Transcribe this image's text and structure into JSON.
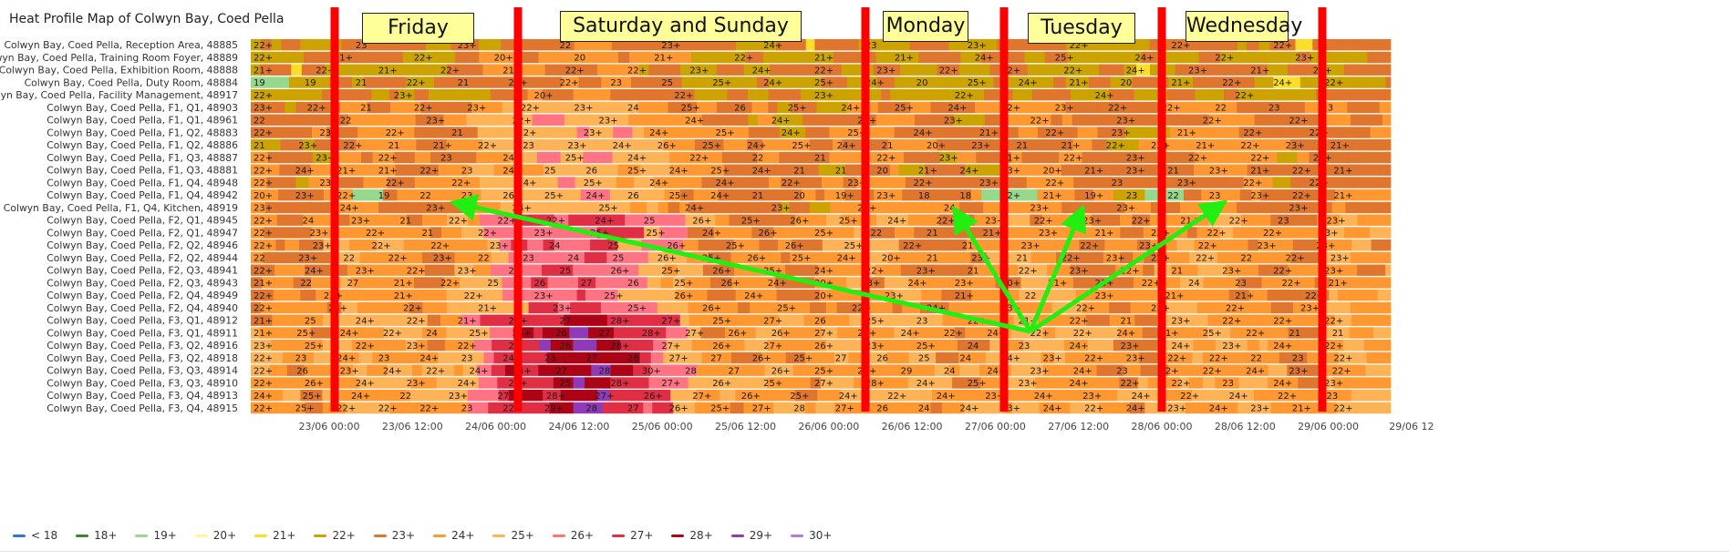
{
  "panel": {
    "title": "Heat Profile Map of Colwyn Bay, Coed Pella"
  },
  "chart_data": {
    "type": "heatmap",
    "title": "Heat Profile Map of Colwyn Bay, Coed Pella",
    "rows": [
      "Colwyn Bay, Coed Pella, Reception Area, 48885",
      "Colwyn Bay, Coed Pella, Training Room Foyer, 48889",
      "Colwyn Bay, Coed Pella, Exhibition Room, 48888",
      "Colwyn Bay, Coed Pella, Duty Room, 48884",
      "Colwyn Bay, Coed Pella, Facility Management, 48917",
      "Colwyn Bay, Coed Pella, F1, Q1, 48903",
      "Colwyn Bay, Coed Pella, F1, Q1, 48961",
      "Colwyn Bay, Coed Pella, F1, Q2, 48883",
      "Colwyn Bay, Coed Pella, F1, Q2, 48886",
      "Colwyn Bay, Coed Pella, F1, Q3, 48887",
      "Colwyn Bay, Coed Pella, F1, Q3, 48881",
      "Colwyn Bay, Coed Pella, F1, Q4, 48948",
      "Colwyn Bay, Coed Pella, F1, Q4, 48942",
      "Colwyn Bay, Coed Pella, F1, Q4, Kitchen, 48919",
      "Colwyn Bay, Coed Pella, F2, Q1, 48945",
      "Colwyn Bay, Coed Pella, F2, Q1, 48947",
      "Colwyn Bay, Coed Pella, F2, Q2, 48946",
      "Colwyn Bay, Coed Pella, F2, Q2, 48944",
      "Colwyn Bay, Coed Pella, F2, Q3, 48941",
      "Colwyn Bay, Coed Pella, F2, Q3, 48943",
      "Colwyn Bay, Coed Pella, F2, Q4, 48949",
      "Colwyn Bay, Coed Pella, F2, Q4, 48940",
      "Colwyn Bay, Coed Pella, F3, Q1, 48912",
      "Colwyn Bay, Coed Pella, F3, Q1, 48911",
      "Colwyn Bay, Coed Pella, F3, Q2, 48916",
      "Colwyn Bay, Coed Pella, F3, Q2, 48918",
      "Colwyn Bay, Coed Pella, F3, Q3, 48914",
      "Colwyn Bay, Coed Pella, F3, Q3, 48910",
      "Colwyn Bay, Coed Pella, F3, Q4, 48913",
      "Colwyn Bay, Coed Pella, F3, Q4, 48915"
    ],
    "x_ticks": [
      "23/06 00:00",
      "23/06 12:00",
      "24/06 00:00",
      "24/06 12:00",
      "25/06 00:00",
      "25/06 12:00",
      "26/06 00:00",
      "26/06 12:00",
      "27/06 00:00",
      "27/06 12:00",
      "28/06 00:00",
      "28/06 12:00",
      "29/06 00:00",
      "29/06 12"
    ],
    "x_range": [
      "22/06 21:00",
      "29/06 12:00"
    ],
    "legend": [
      {
        "label": "< 18",
        "color": "#3274d9"
      },
      {
        "label": "18+",
        "color": "#37872d"
      },
      {
        "label": "19+",
        "color": "#96d98d"
      },
      {
        "label": "20+",
        "color": "#fff899"
      },
      {
        "label": "21+",
        "color": "#fade2a"
      },
      {
        "label": "22+",
        "color": "#cca300"
      },
      {
        "label": "23+",
        "color": "#e0752d"
      },
      {
        "label": "24+",
        "color": "#ff9830"
      },
      {
        "label": "25+",
        "color": "#ffb357"
      },
      {
        "label": "26+",
        "color": "#ff7383"
      },
      {
        "label": "27+",
        "color": "#e02f44"
      },
      {
        "label": "28+",
        "color": "#ad0317"
      },
      {
        "label": "29+",
        "color": "#8f3bb8"
      },
      {
        "label": "30+",
        "color": "#b877d9"
      }
    ],
    "cell_values": {
      "0": [
        "22+",
        "23",
        "23+",
        "22",
        "23+",
        "24+",
        "23",
        "23+",
        "22+",
        "22+",
        "22+"
      ],
      "1": [
        "22+",
        "21+",
        "22+",
        "20+",
        "20",
        "21+",
        "22+",
        "21+",
        "21+",
        "24+",
        "25+",
        "24+",
        "22+",
        "23+"
      ],
      "2": [
        "21+",
        "22+",
        "21+",
        "22+",
        "21",
        "22+",
        "22+",
        "23+",
        "24+",
        "22+",
        "23+",
        "22+",
        "22+",
        "22+",
        "24+",
        "23+",
        "21+",
        "22+"
      ],
      "3": [
        "19",
        "19",
        "21",
        "22+",
        "21",
        "21+",
        "22+",
        "23",
        "25",
        "25+",
        "24+",
        "25+",
        "24+",
        "20",
        "25+",
        "24+",
        "21+",
        "20",
        "21+",
        "22+",
        "24+",
        "22+"
      ],
      "4": [
        "22+",
        "23+",
        "20+",
        "22+",
        "23+",
        "22+",
        "24+",
        "22+"
      ],
      "5": [
        "23+",
        "22+",
        "21",
        "22+",
        "23+",
        "22+",
        "23+",
        "24",
        "25+",
        "26",
        "25+",
        "24+",
        "25+",
        "24+",
        "22+",
        "23+",
        "22+",
        "22+",
        "22",
        "23",
        "23"
      ],
      "6": [
        "22",
        "22",
        "23+",
        "22+",
        "23+",
        "24+",
        "24+",
        "25+",
        "23+",
        "22+",
        "23+",
        "22+",
        "22+"
      ],
      "7": [
        "22+",
        "23+",
        "22+",
        "21",
        "22+",
        "23+",
        "24+",
        "25+",
        "24+",
        "25+",
        "24+",
        "21+",
        "22+",
        "23+",
        "21+",
        "22+",
        "22+"
      ],
      "8": [
        "21",
        "23+",
        "22+",
        "21",
        "21+",
        "22+",
        "23",
        "23+",
        "24+",
        "26+",
        "25+",
        "24+",
        "25+",
        "24+",
        "21",
        "20+",
        "23+",
        "21",
        "21+",
        "22+",
        "22+",
        "21+",
        "22+",
        "23+",
        "21+"
      ],
      "9": [
        "22+",
        "23+",
        "22+",
        "23",
        "24+",
        "25+",
        "24+",
        "22+",
        "22",
        "21",
        "22+",
        "23+",
        "21+",
        "22+",
        "23+",
        "22+",
        "22+",
        "22+"
      ],
      "10": [
        "22+",
        "24+",
        "21+",
        "21+",
        "22+",
        "23",
        "24",
        "25",
        "26",
        "25+",
        "24+",
        "25+",
        "24+",
        "21",
        "21",
        "20",
        "21+",
        "24+",
        "23+",
        "20+",
        "21+",
        "23+",
        "21",
        "23+",
        "21+",
        "22+",
        "21+"
      ],
      "11": [
        "22+",
        "23+",
        "22+",
        "22+",
        "24+",
        "25+",
        "24+",
        "24+",
        "22+",
        "23+",
        "22+",
        "23+",
        "22+",
        "23",
        "23+",
        "22+",
        "22+"
      ],
      "12": [
        "20+",
        "23+",
        "22+",
        "19",
        "22",
        "23",
        "26+",
        "25+",
        "24+",
        "26",
        "25+",
        "24+",
        "21",
        "20",
        "19+",
        "23+",
        "18",
        "18",
        "22+",
        "21+",
        "19+",
        "23",
        "22",
        "23",
        "23+",
        "22+",
        "21+"
      ],
      "13": [
        "23+",
        "24+",
        "23+",
        "24+",
        "25+",
        "24+",
        "23+",
        "23+",
        "24",
        "23+",
        "23+",
        "23+",
        "23+"
      ],
      "14": [
        "22+",
        "24",
        "23+",
        "21",
        "22+",
        "22+",
        "22+",
        "24+",
        "25",
        "26+",
        "25+",
        "26+",
        "25+",
        "24+",
        "22+",
        "23+",
        "22+",
        "23+",
        "22+",
        "21+",
        "22+",
        "23",
        "23+"
      ],
      "15": [
        "22+",
        "23+",
        "22+",
        "21",
        "22+",
        "23+",
        "25+",
        "25+",
        "24+",
        "26+",
        "25+",
        "22",
        "21",
        "21+",
        "23+",
        "21+",
        "22+",
        "22+",
        "22+",
        "23+"
      ],
      "16": [
        "22+",
        "23+",
        "22+",
        "22+",
        "23+",
        "24",
        "25",
        "26+",
        "25+",
        "26+",
        "25+",
        "22+",
        "21",
        "23+",
        "22+",
        "23+",
        "22+",
        "23+",
        "23+"
      ],
      "17": [
        "22",
        "23+",
        "22",
        "22+",
        "23+",
        "22",
        "23",
        "24",
        "25",
        "26+",
        "25+",
        "26+",
        "25+",
        "24+",
        "20+",
        "21",
        "23+",
        "21",
        "22+",
        "23+",
        "22+",
        "22+",
        "22",
        "22+",
        "23+"
      ],
      "18": [
        "22+",
        "24+",
        "23+",
        "22+",
        "23+",
        "24",
        "25",
        "26+",
        "25+",
        "26+",
        "25+",
        "24+",
        "22+",
        "23+",
        "21",
        "22+",
        "23+",
        "22+",
        "21",
        "23+",
        "22+",
        "23+"
      ],
      "19": [
        "21+",
        "22",
        "27",
        "21+",
        "22+",
        "25",
        "26",
        "27",
        "26",
        "25+",
        "26+",
        "24+",
        "20+",
        "23+",
        "24+",
        "23+",
        "20+",
        "21+",
        "23+",
        "22+",
        "24",
        "23",
        "22+",
        "21+"
      ],
      "20": [
        "22+",
        "23+",
        "21+",
        "22+",
        "23+",
        "25+",
        "26+",
        "24+",
        "20+",
        "23+",
        "21+",
        "22",
        "23+",
        "21+",
        "21+",
        "22+"
      ],
      "21": [
        "22+",
        "23+",
        "22+",
        "21+",
        "23+",
        "25+",
        "26+",
        "25+",
        "22+",
        "24+",
        "23+",
        "22+",
        "23+",
        "22+",
        "23+"
      ],
      "22": [
        "21+",
        "25",
        "24+",
        "22+",
        "21+",
        "24+",
        "27",
        "28+",
        "27+",
        "25+",
        "27+",
        "26",
        "25+",
        "23",
        "22+",
        "21+",
        "22+",
        "21",
        "23+",
        "22+",
        "22+",
        "22+"
      ],
      "23": [
        "21+",
        "25+",
        "24+",
        "22+",
        "24",
        "25+",
        "25+",
        "26",
        "27",
        "28+",
        "27+",
        "26+",
        "26+",
        "27+",
        "26+",
        "24+",
        "22+",
        "24+",
        "22+",
        "22+",
        "24+",
        "21+",
        "25+",
        "22+",
        "21",
        "21"
      ],
      "24": [
        "23+",
        "25+",
        "22+",
        "23+",
        "22+",
        "25",
        "26",
        "28+",
        "27+",
        "26+",
        "27+",
        "26+",
        "23+",
        "25+",
        "24",
        "23",
        "24+",
        "23+",
        "24+",
        "23+",
        "24+",
        "22+"
      ],
      "25": [
        "22+",
        "23",
        "24+",
        "23",
        "24+",
        "23",
        "24",
        "23",
        "27",
        "28",
        "27+",
        "27",
        "26+",
        "25+",
        "27",
        "26",
        "25",
        "24",
        "24+",
        "23+",
        "22+",
        "23+",
        "22+",
        "22+",
        "22",
        "23",
        "22+"
      ],
      "26": [
        "22+",
        "26",
        "23+",
        "24+",
        "22+",
        "24+",
        "24+",
        "27",
        "28",
        "30+",
        "28",
        "27",
        "26+",
        "25+",
        "27+",
        "29",
        "24",
        "24+",
        "23+",
        "24+",
        "23",
        "22+",
        "22+",
        "24+",
        "23+",
        "22+"
      ],
      "27": [
        "22+",
        "26+",
        "24+",
        "23+",
        "24+",
        "22+",
        "25",
        "28+",
        "27+",
        "26+",
        "25+",
        "27+",
        "28+",
        "24+",
        "25+",
        "23+",
        "24+",
        "22+",
        "22+",
        "23",
        "24+",
        "23+"
      ],
      "28": [
        "24+",
        "25+",
        "24+",
        "22",
        "23+",
        "27",
        "28+",
        "27+",
        "26+",
        "27+",
        "26+",
        "25+",
        "24+",
        "22+",
        "24+",
        "23+",
        "24+",
        "23+",
        "24+",
        "22+",
        "24+",
        "22+",
        "23"
      ],
      "29": [
        "22+",
        "25+",
        "22+",
        "22+",
        "22+",
        "23",
        "22",
        "29+",
        "28",
        "27",
        "26+",
        "25+",
        "27+",
        "28",
        "27+",
        "26",
        "24",
        "24+",
        "23+",
        "24+",
        "22+",
        "24+",
        "23+",
        "24+",
        "23+",
        "21+",
        "22+"
      ]
    },
    "annotations": {
      "day_labels": [
        "Friday",
        "Saturday and Sunday",
        "Monday",
        "Tuesday",
        "Wednesday"
      ]
    },
    "grid": false,
    "legend_position": "bottom-left"
  }
}
